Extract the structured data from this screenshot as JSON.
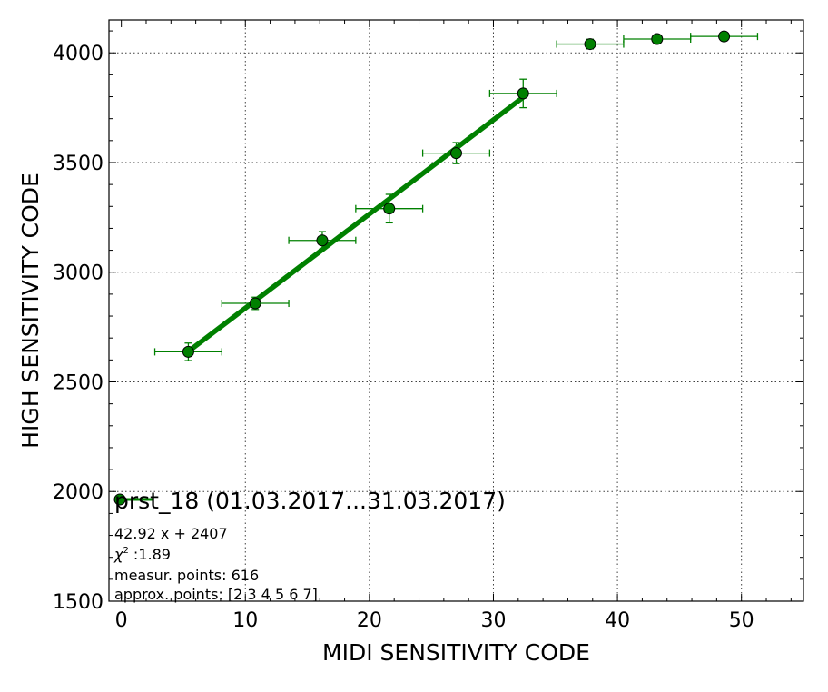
{
  "chart_data": {
    "type": "scatter",
    "xlabel": "MIDI SENSITIVITY CODE",
    "ylabel": "HIGH SENSITIVITY CODE",
    "xlim": [
      -1,
      55
    ],
    "ylim": [
      1500,
      4150
    ],
    "x_ticks": [
      0,
      10,
      20,
      30,
      40,
      50
    ],
    "y_ticks": [
      1500,
      2000,
      2500,
      3000,
      3500,
      4000
    ],
    "grid": true,
    "legend": {
      "placement": "lower-left",
      "label": "prst_18 (01.03.2017...31.03.2017)"
    },
    "series": [
      {
        "kind": "points-with-errorbars",
        "color": "#008000",
        "x": [
          5.4,
          10.8,
          16.2,
          21.6,
          27.0,
          32.4,
          37.8,
          43.2,
          48.6
        ],
        "y": [
          2637,
          2858,
          3145,
          3290,
          3543,
          3815,
          4040,
          4063,
          4075
        ],
        "x_err": [
          2.7,
          2.7,
          2.7,
          2.7,
          2.7,
          2.7,
          2.7,
          2.7,
          2.7
        ],
        "y_err": [
          40,
          28,
          40,
          65,
          48,
          65,
          22,
          15,
          12
        ]
      },
      {
        "kind": "fit-line",
        "color": "#008000",
        "x": [
          5.4,
          32.4
        ],
        "y": [
          2638.8,
          3797.6
        ]
      }
    ],
    "annotations": {
      "equation": "42.92 x + 2407",
      "chi_symbol": "χ",
      "chi_exponent": "2",
      "chi_value": " :1.89",
      "measur_points": "measur. points: 616",
      "approx_points": "approx. points: [2 3 4 5 6 7]"
    }
  }
}
